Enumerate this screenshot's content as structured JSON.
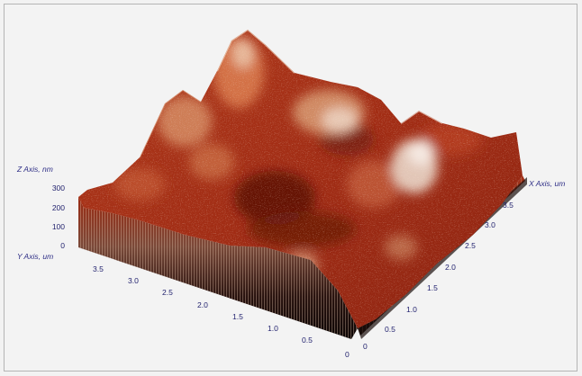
{
  "plot": {
    "z_axis_label": "Z Axis, nm",
    "x_axis_label": "X Axis, um",
    "y_axis_label": "Y Axis, um",
    "z_ticks": [
      "0",
      "100",
      "200",
      "300"
    ],
    "x_ticks": [
      "0",
      "0.5",
      "1.0",
      "1.5",
      "2.0",
      "2.5",
      "3.0",
      "3.5"
    ],
    "y_ticks": [
      "0",
      "0.5",
      "1.0",
      "1.5",
      "2.0",
      "2.5",
      "3.0",
      "3.5"
    ]
  },
  "colors": {
    "dark": "#3a0a04",
    "deep_red": "#7e1a0a",
    "red": "#b8331a",
    "orange": "#d9693a",
    "tan": "#d9a47e",
    "highlight": "#efe1d6",
    "axis_text": "#2e2e86"
  }
}
